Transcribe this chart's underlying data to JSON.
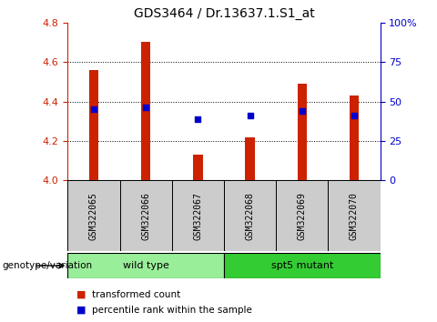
{
  "title": "GDS3464 / Dr.13637.1.S1_at",
  "samples": [
    "GSM322065",
    "GSM322066",
    "GSM322067",
    "GSM322068",
    "GSM322069",
    "GSM322070"
  ],
  "transformed_count": [
    4.56,
    4.7,
    4.13,
    4.22,
    4.49,
    4.43
  ],
  "percentile_rank": [
    4.36,
    4.37,
    4.31,
    4.33,
    4.35,
    4.33
  ],
  "ylim_left": [
    4.0,
    4.8
  ],
  "ylim_right": [
    0,
    100
  ],
  "yticks_left": [
    4.0,
    4.2,
    4.4,
    4.6,
    4.8
  ],
  "yticks_right": [
    0,
    25,
    50,
    75,
    100
  ],
  "bar_color": "#cc2200",
  "dot_color": "#0000cc",
  "bar_bottom": 4.0,
  "groups": [
    {
      "label": "wild type",
      "samples": [
        0,
        1,
        2
      ],
      "color": "#99ee99"
    },
    {
      "label": "spt5 mutant",
      "samples": [
        3,
        4,
        5
      ],
      "color": "#33cc33"
    }
  ],
  "genotype_label": "genotype/variation",
  "legend_bar": "transformed count",
  "legend_dot": "percentile rank within the sample",
  "bg_color": "#ffffff",
  "plot_bg": "#ffffff",
  "sample_bg": "#cccccc",
  "grid_color": "#000000",
  "left_tick_color": "#cc2200",
  "right_tick_color": "#0000cc",
  "bar_width": 0.18
}
